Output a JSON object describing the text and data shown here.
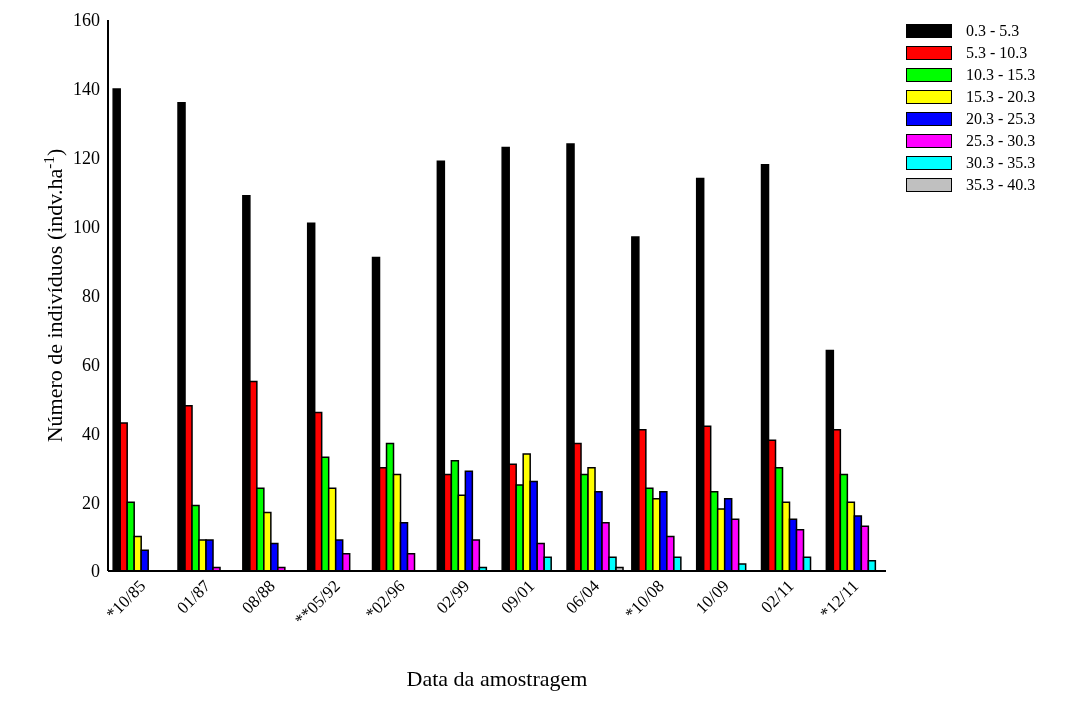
{
  "chart_data": {
    "type": "bar",
    "xlabel": "Data da amostragem",
    "ylabel": "Número de indivíduos (indv.ha$^{-1}$)",
    "categories": [
      "*10/85",
      "01/87",
      "08/88",
      "**05/92",
      "*02/96",
      "02/99",
      "09/01",
      "06/04",
      "*10/08",
      "10/09",
      "02/11",
      "*12/11"
    ],
    "series": [
      {
        "name": "0.3 - 5.3",
        "color": "#000000",
        "values": [
          140,
          136,
          109,
          101,
          91,
          119,
          123,
          124,
          97,
          114,
          118,
          64
        ]
      },
      {
        "name": "5.3 - 10.3",
        "color": "#ff0000",
        "values": [
          43,
          48,
          55,
          46,
          30,
          28,
          31,
          37,
          41,
          42,
          38,
          41
        ]
      },
      {
        "name": "10.3 - 15.3",
        "color": "#00ff00",
        "values": [
          20,
          19,
          24,
          33,
          37,
          32,
          25,
          28,
          24,
          23,
          30,
          28
        ]
      },
      {
        "name": "15.3 - 20.3",
        "color": "#ffff00",
        "values": [
          10,
          9,
          17,
          24,
          28,
          22,
          34,
          30,
          21,
          18,
          20,
          20
        ]
      },
      {
        "name": "20.3 - 25.3",
        "color": "#0000ff",
        "values": [
          6,
          9,
          8,
          9,
          14,
          29,
          26,
          23,
          23,
          21,
          15,
          16
        ]
      },
      {
        "name": "25.3 - 30.3",
        "color": "#ff00ff",
        "values": [
          0,
          1,
          1,
          5,
          5,
          9,
          8,
          14,
          10,
          15,
          12,
          13
        ]
      },
      {
        "name": "30.3 - 35.3",
        "color": "#00ffff",
        "values": [
          0,
          0,
          0,
          0,
          0,
          1,
          4,
          4,
          4,
          2,
          4,
          3
        ]
      },
      {
        "name": "35.3 - 40.3",
        "color": "#c0c0c0",
        "values": [
          0,
          0,
          0,
          0,
          0,
          0,
          0,
          1,
          0,
          0,
          0,
          0
        ]
      }
    ],
    "ylim": [
      0,
      160
    ],
    "yticks": [
      0,
      20,
      40,
      60,
      80,
      100,
      120,
      140,
      160
    ],
    "grid": false,
    "legend": "top right"
  }
}
